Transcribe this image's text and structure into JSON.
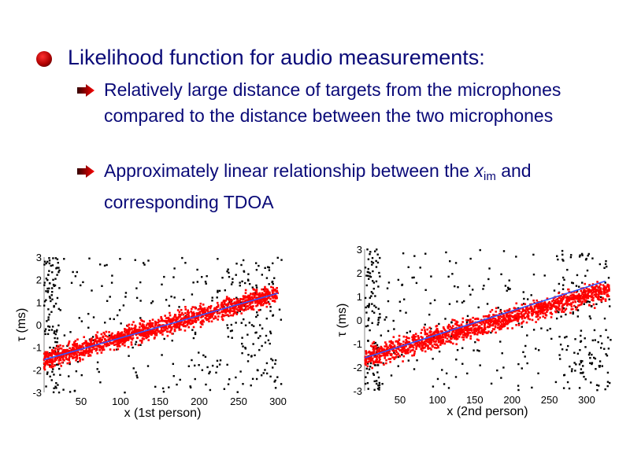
{
  "slide": {
    "title_bullet": "Likelihood function for audio measurements:",
    "sub_bullets": [
      {
        "text": "Relatively large distance of targets from the microphones compared to the distance between the two microphones"
      },
      {
        "text_before": "Approximately linear relationship between the ",
        "var": "x",
        "sub": "im",
        "text_after": " and corresponding TDOA"
      }
    ],
    "bullet_color": "#cc0000",
    "text_color": "#0a0a78"
  },
  "chart_data": [
    {
      "type": "scatter",
      "xlabel": "x (1st person)",
      "ylabel": "τ (ms)",
      "xlim": [
        3,
        305
      ],
      "ylim": [
        -3,
        3
      ],
      "xticks": [
        50,
        100,
        150,
        200,
        250,
        300
      ],
      "yticks": [
        -3,
        -2,
        -1,
        0,
        1,
        2,
        3
      ],
      "series": [
        {
          "role": "inliers",
          "color": "#ff0000",
          "trend": [
            [
              3,
              -1.55
            ],
            [
              300,
              1.4
            ]
          ],
          "spread": 0.3
        },
        {
          "role": "outliers",
          "color": "#000000"
        },
        {
          "role": "fit-line",
          "color": "#3355ff",
          "points": [
            [
              3,
              -1.55
            ],
            [
              300,
              1.4
            ]
          ]
        }
      ]
    },
    {
      "type": "scatter",
      "xlabel": "x (2nd person)",
      "ylabel": "τ (ms)",
      "xlim": [
        3,
        332
      ],
      "ylim": [
        -3,
        3
      ],
      "xticks": [
        50,
        100,
        150,
        200,
        250,
        300
      ],
      "yticks": [
        -3,
        -2,
        -1,
        0,
        1,
        2,
        3
      ],
      "series": [
        {
          "role": "inliers",
          "color": "#ff0000",
          "trend": [
            [
              3,
              -1.6
            ],
            [
              330,
              1.3
            ]
          ],
          "spread": 0.3
        },
        {
          "role": "outliers",
          "color": "#000000"
        },
        {
          "role": "fit-line",
          "color": "#3355ff",
          "points": [
            [
              3,
              -1.6
            ],
            [
              325,
              1.65
            ]
          ]
        }
      ]
    }
  ]
}
